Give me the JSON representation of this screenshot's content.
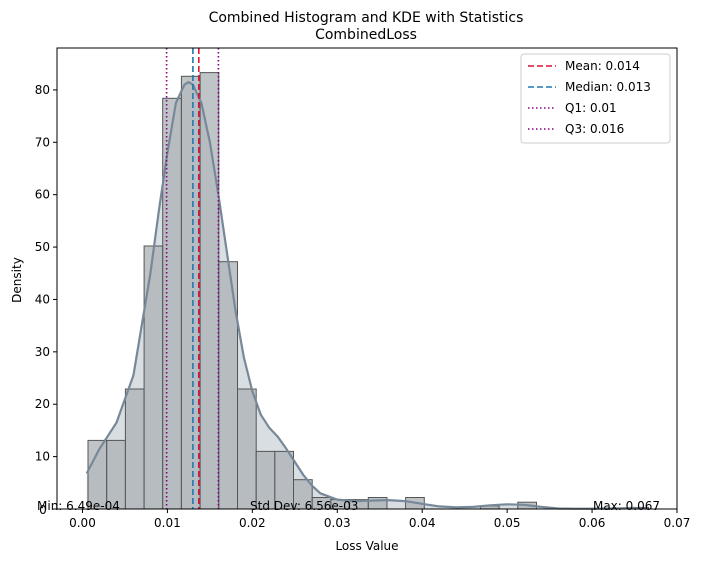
{
  "chart_data": {
    "type": "bar",
    "title": "Combined Histogram and KDE with Statistics",
    "subtitle": "CombinedLoss",
    "xlabel": "Loss Value",
    "ylabel": "Density",
    "xlim": [
      -0.003,
      0.07
    ],
    "ylim": [
      0,
      88
    ],
    "xticks": [
      "0.00",
      "0.01",
      "0.02",
      "0.03",
      "0.04",
      "0.05",
      "0.06",
      "0.07"
    ],
    "xtick_values": [
      0,
      0.01,
      0.02,
      0.03,
      0.04,
      0.05,
      0.06,
      0.07
    ],
    "yticks": [
      "0",
      "10",
      "20",
      "30",
      "40",
      "50",
      "60",
      "70",
      "80"
    ],
    "ytick_values": [
      0,
      10,
      20,
      30,
      40,
      50,
      60,
      70,
      80
    ],
    "grid": false,
    "legend_position": "top-right",
    "hist_bins": [
      {
        "x0": 0.00065,
        "x1": 0.00285,
        "value": 13.1
      },
      {
        "x0": 0.00285,
        "x1": 0.00505,
        "value": 13.1
      },
      {
        "x0": 0.00505,
        "x1": 0.00725,
        "value": 22.9
      },
      {
        "x0": 0.00725,
        "x1": 0.00945,
        "value": 50.2
      },
      {
        "x0": 0.00945,
        "x1": 0.01165,
        "value": 78.4
      },
      {
        "x0": 0.01165,
        "x1": 0.01385,
        "value": 82.6
      },
      {
        "x0": 0.01385,
        "x1": 0.01605,
        "value": 83.3
      },
      {
        "x0": 0.01605,
        "x1": 0.01825,
        "value": 47.2
      },
      {
        "x0": 0.01825,
        "x1": 0.02045,
        "value": 22.9
      },
      {
        "x0": 0.02045,
        "x1": 0.02265,
        "value": 11.0
      },
      {
        "x0": 0.02265,
        "x1": 0.02485,
        "value": 11.0
      },
      {
        "x0": 0.02485,
        "x1": 0.02705,
        "value": 5.6
      },
      {
        "x0": 0.02705,
        "x1": 0.02925,
        "value": 2.2
      },
      {
        "x0": 0.02925,
        "x1": 0.03145,
        "value": 1.8
      },
      {
        "x0": 0.03145,
        "x1": 0.03365,
        "value": 1.8
      },
      {
        "x0": 0.03365,
        "x1": 0.03585,
        "value": 2.2
      },
      {
        "x0": 0.03805,
        "x1": 0.04025,
        "value": 2.2
      },
      {
        "x0": 0.04685,
        "x1": 0.04905,
        "value": 0.6
      },
      {
        "x0": 0.05125,
        "x1": 0.05345,
        "value": 1.3
      },
      {
        "x0": 0.06445,
        "x1": 0.06665,
        "value": 0.3
      }
    ],
    "kde": {
      "x": [
        0.0005,
        0.002,
        0.004,
        0.006,
        0.008,
        0.009,
        0.01,
        0.011,
        0.012,
        0.0125,
        0.013,
        0.014,
        0.015,
        0.016,
        0.017,
        0.018,
        0.019,
        0.02,
        0.021,
        0.022,
        0.023,
        0.024,
        0.025,
        0.026,
        0.027,
        0.028,
        0.03,
        0.032,
        0.034,
        0.036,
        0.038,
        0.04,
        0.042,
        0.044,
        0.046,
        0.048,
        0.05,
        0.052,
        0.054,
        0.056,
        0.058,
        0.06,
        0.062,
        0.064,
        0.0665
      ],
      "y": [
        6.8,
        11.5,
        16.5,
        25.5,
        45.0,
        57.0,
        68.0,
        77.5,
        81.0,
        81.5,
        81.0,
        77.5,
        70.0,
        60.0,
        49.0,
        38.0,
        29.0,
        22.5,
        18.0,
        15.5,
        13.8,
        11.5,
        9.0,
        6.5,
        4.5,
        3.0,
        1.8,
        1.5,
        1.6,
        1.7,
        1.5,
        1.0,
        0.5,
        0.3,
        0.4,
        0.7,
        0.9,
        0.8,
        0.4,
        0.1,
        0.05,
        0.05,
        0.1,
        0.15,
        0.1
      ]
    },
    "stats_lines": [
      {
        "label": "Mean: 0.014",
        "value": 0.0137,
        "color": "#dc143c",
        "style": "dashed"
      },
      {
        "label": "Median: 0.013",
        "value": 0.013,
        "color": "#1f77b4",
        "style": "dashed"
      },
      {
        "label": "Q1: 0.01",
        "value": 0.0099,
        "color": "#800080",
        "style": "dotted"
      },
      {
        "label": "Q3: 0.016",
        "value": 0.016,
        "color": "#800080",
        "style": "dotted"
      }
    ],
    "annotations": {
      "min": "Min: 6.49e-04",
      "std": "Std Dev: 6.56e-03",
      "max": "Max: 0.067",
      "zero_label": "0"
    },
    "colors": {
      "hist_fill": "#a9b0b4",
      "hist_edge": "#555555",
      "kde_line": "#778899",
      "kde_fill": "#778899"
    }
  }
}
